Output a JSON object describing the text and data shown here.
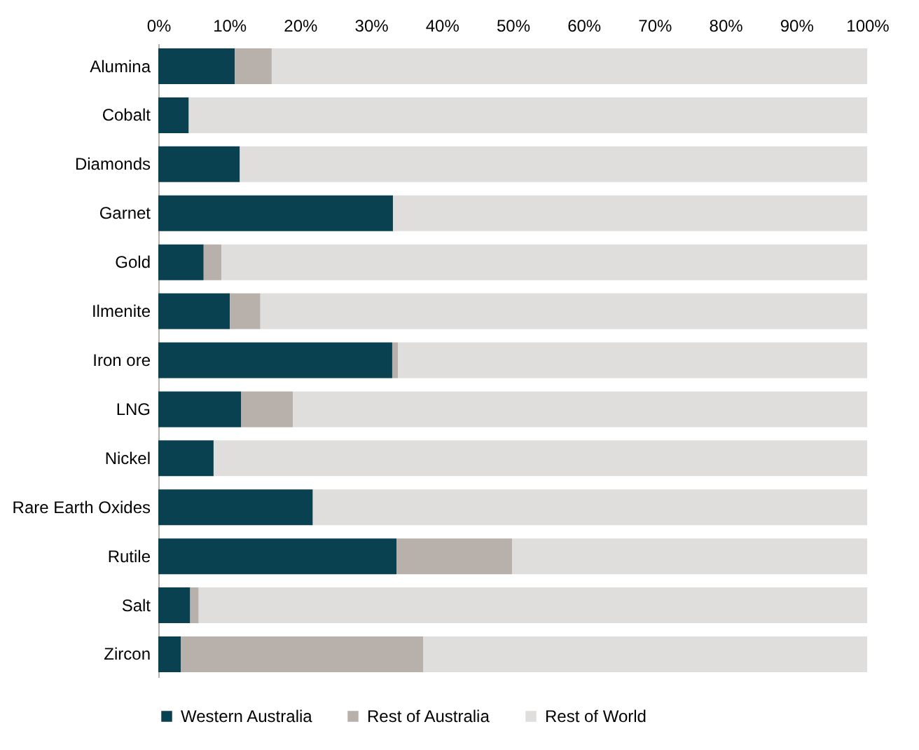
{
  "chart_data": {
    "type": "bar",
    "orientation": "horizontal",
    "stacked": true,
    "categories": [
      "Alumina",
      "Cobalt",
      "Diamonds",
      "Garnet",
      "Gold",
      "Ilmenite",
      "Iron ore",
      "LNG",
      "Nickel",
      "Rare Earth Oxides",
      "Rutile",
      "Salt",
      "Zircon"
    ],
    "series": [
      {
        "name": "Western Australia",
        "color": "#0a4150",
        "values": [
          10.8,
          4.3,
          11.5,
          33.1,
          6.4,
          10.1,
          33.0,
          11.7,
          7.8,
          21.8,
          33.6,
          4.5,
          3.2
        ]
      },
      {
        "name": "Rest of Australia",
        "color": "#b8b0ab",
        "values": [
          5.2,
          0,
          0,
          0,
          2.5,
          4.3,
          0.8,
          7.3,
          0,
          0,
          16.3,
          1.2,
          34.2
        ]
      },
      {
        "name": "Rest of World",
        "color": "#e0dedd",
        "values": [
          84.0,
          95.7,
          88.5,
          66.9,
          91.1,
          85.6,
          66.2,
          81.0,
          92.2,
          78.2,
          50.1,
          94.3,
          62.6
        ]
      }
    ],
    "xlim": [
      0,
      100
    ],
    "xticks": [
      {
        "value": 0,
        "label": "0%"
      },
      {
        "value": 10,
        "label": "10%"
      },
      {
        "value": 20,
        "label": "20%"
      },
      {
        "value": 30,
        "label": "30%"
      },
      {
        "value": 40,
        "label": "40%"
      },
      {
        "value": 50,
        "label": "50%"
      },
      {
        "value": 60,
        "label": "60%"
      },
      {
        "value": 70,
        "label": "70%"
      },
      {
        "value": 80,
        "label": "80%"
      },
      {
        "value": 90,
        "label": "90%"
      },
      {
        "value": 100,
        "label": "100%"
      }
    ],
    "legend": "bottom",
    "grid": false
  }
}
